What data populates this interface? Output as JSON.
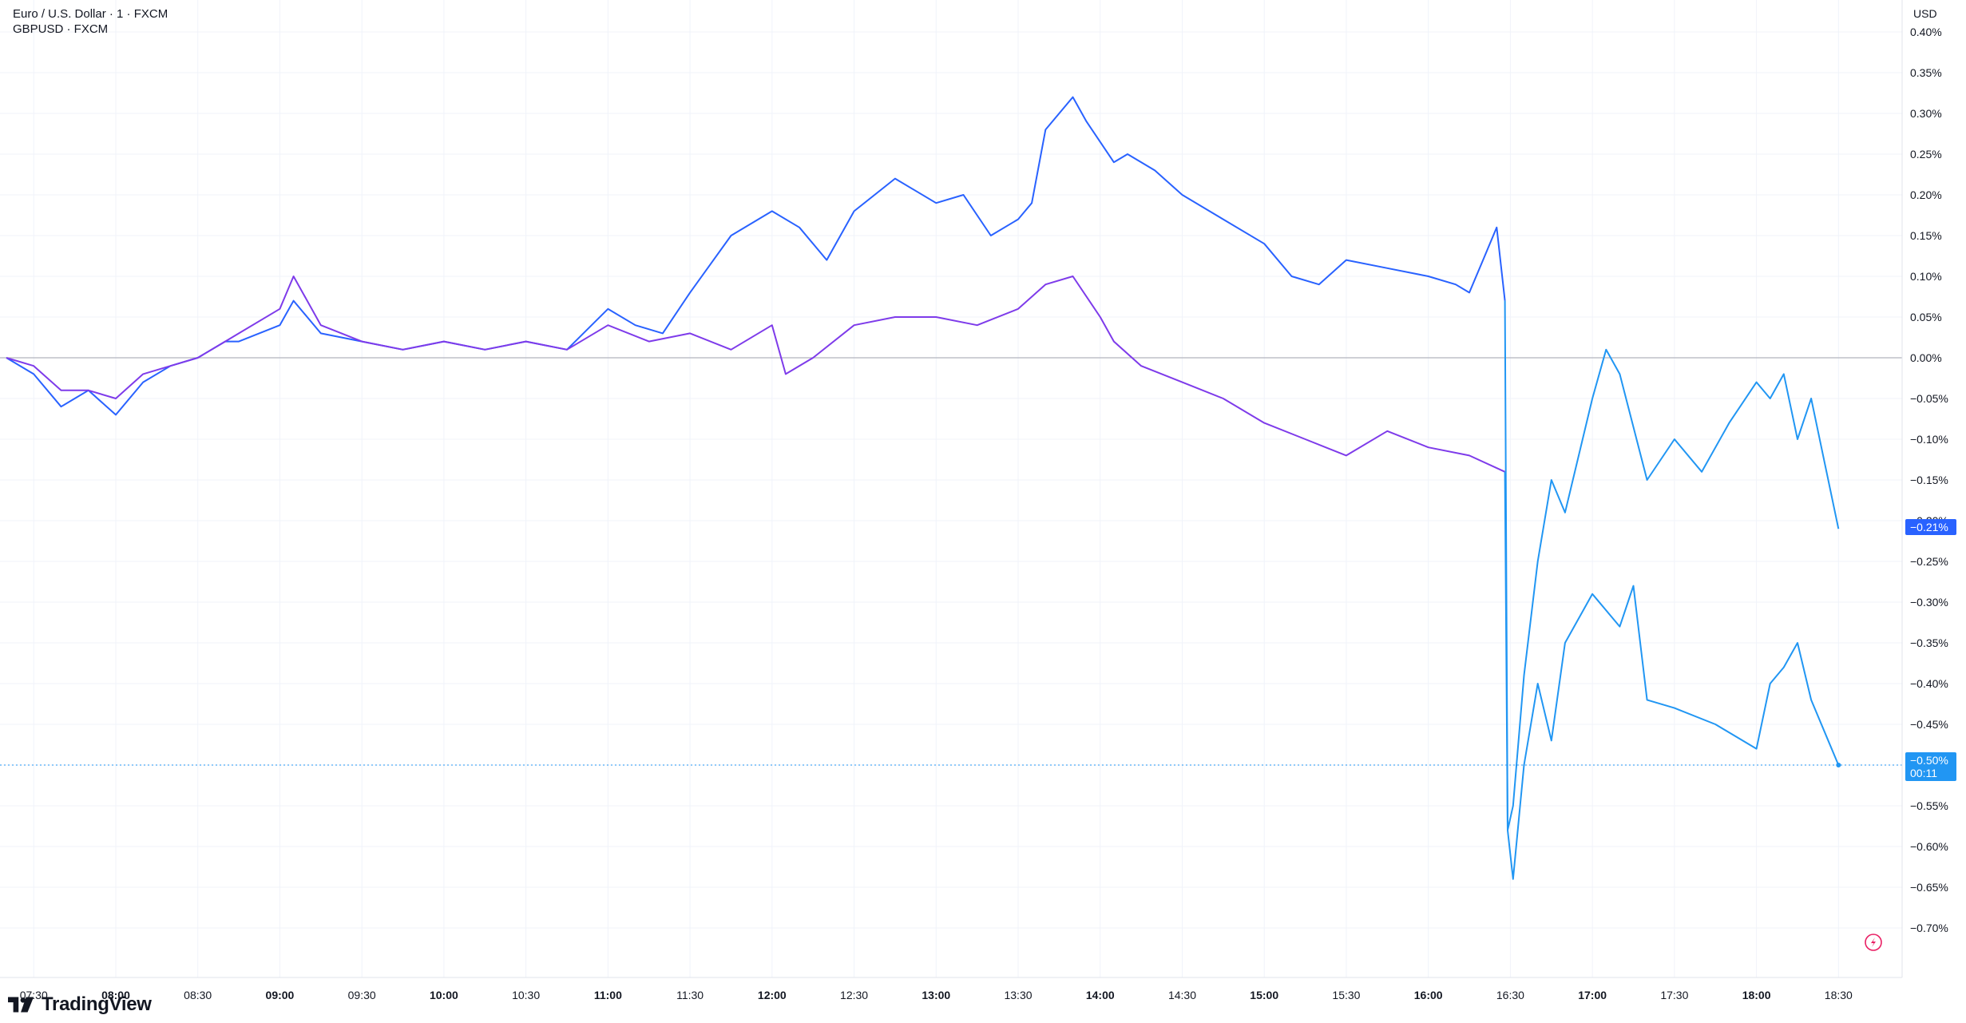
{
  "legend": {
    "main_symbol": "Euro / U.S. Dollar · 1 · FXCM",
    "compare_symbol": "GBPUSD · FXCM"
  },
  "brand": {
    "name": "TradingView"
  },
  "price_axis_unit": "USD",
  "badges": {
    "primary_value": "−0.21%",
    "secondary_value": "−0.50%",
    "countdown": "00:11"
  },
  "colors": {
    "eurusd": "#2962ff",
    "gbpusd": "#7e3bea",
    "after_event": "#2196f3",
    "grid": "#f0f3fa",
    "zero_line": "#b2b5be"
  },
  "chart_data": {
    "type": "line",
    "ylabel": "USD",
    "y_unit": "%",
    "ylim": [
      -0.72,
      0.41
    ],
    "y_ticks": [
      "0.40%",
      "0.35%",
      "0.30%",
      "0.25%",
      "0.20%",
      "0.15%",
      "0.10%",
      "0.05%",
      "0.00%",
      "−0.05%",
      "−0.10%",
      "−0.15%",
      "−0.20%",
      "−0.25%",
      "−0.30%",
      "−0.35%",
      "−0.40%",
      "−0.45%",
      "−0.50%",
      "−0.55%",
      "−0.60%",
      "−0.65%",
      "−0.70%"
    ],
    "y_tick_values": [
      0.4,
      0.35,
      0.3,
      0.25,
      0.2,
      0.15,
      0.1,
      0.05,
      0.0,
      -0.05,
      -0.1,
      -0.15,
      -0.2,
      -0.25,
      -0.3,
      -0.35,
      -0.4,
      -0.45,
      -0.5,
      -0.55,
      -0.6,
      -0.65,
      -0.7
    ],
    "x_ticks": [
      "07:30",
      "08:00",
      "08:30",
      "09:00",
      "09:30",
      "10:00",
      "10:30",
      "11:00",
      "11:30",
      "12:00",
      "12:30",
      "13:00",
      "13:30",
      "14:00",
      "14:30",
      "15:00",
      "15:30",
      "16:00",
      "16:30",
      "17:00",
      "17:30",
      "18:00",
      "18:30"
    ],
    "x_bold_ticks": [
      "08:00",
      "09:00",
      "10:00",
      "11:00",
      "12:00",
      "13:00",
      "14:00",
      "15:00",
      "16:00",
      "17:00",
      "18:00"
    ],
    "grid": true,
    "series": [
      {
        "name": "Euro / U.S. Dollar · 1 · FXCM",
        "x": [
          "07:20",
          "07:30",
          "07:40",
          "07:45",
          "07:50",
          "08:00",
          "08:10",
          "08:20",
          "08:30",
          "08:40",
          "08:45",
          "09:00",
          "09:05",
          "09:15",
          "09:30",
          "09:45",
          "10:00",
          "10:15",
          "10:30",
          "10:45",
          "11:00",
          "11:10",
          "11:20",
          "11:30",
          "11:45",
          "12:00",
          "12:10",
          "12:20",
          "12:30",
          "12:45",
          "13:00",
          "13:10",
          "13:20",
          "13:30",
          "13:35",
          "13:40",
          "13:50",
          "13:55",
          "14:05",
          "14:10",
          "14:20",
          "14:30",
          "14:45",
          "15:00",
          "15:10",
          "15:20",
          "15:30",
          "15:45",
          "16:00",
          "16:10",
          "16:15",
          "16:20",
          "16:25",
          "16:28",
          "16:29",
          "16:31",
          "16:35",
          "16:40",
          "16:45",
          "16:50",
          "17:00",
          "17:05",
          "17:10",
          "17:20",
          "17:30",
          "17:40",
          "17:50",
          "18:00",
          "18:05",
          "18:10",
          "18:15",
          "18:20",
          "18:30"
        ],
        "values": [
          0.0,
          -0.02,
          -0.06,
          -0.05,
          -0.04,
          -0.07,
          -0.03,
          -0.01,
          0.0,
          0.02,
          0.02,
          0.04,
          0.07,
          0.03,
          0.02,
          0.01,
          0.02,
          0.01,
          0.02,
          0.01,
          0.06,
          0.04,
          0.03,
          0.08,
          0.15,
          0.18,
          0.16,
          0.12,
          0.18,
          0.22,
          0.19,
          0.2,
          0.15,
          0.17,
          0.19,
          0.28,
          0.32,
          0.29,
          0.24,
          0.25,
          0.23,
          0.2,
          0.17,
          0.14,
          0.1,
          0.09,
          0.12,
          0.11,
          0.1,
          0.09,
          0.08,
          0.12,
          0.16,
          0.07,
          -0.58,
          -0.55,
          -0.39,
          -0.25,
          -0.15,
          -0.19,
          -0.05,
          0.01,
          -0.02,
          -0.15,
          -0.1,
          -0.14,
          -0.08,
          -0.03,
          -0.05,
          -0.02,
          -0.1,
          -0.05,
          -0.21
        ]
      },
      {
        "name": "GBPUSD · FXCM",
        "x": [
          "07:20",
          "07:30",
          "07:40",
          "07:50",
          "08:00",
          "08:10",
          "08:20",
          "08:30",
          "08:40",
          "08:45",
          "09:00",
          "09:05",
          "09:15",
          "09:30",
          "09:45",
          "10:00",
          "10:15",
          "10:30",
          "10:45",
          "11:00",
          "11:15",
          "11:30",
          "11:45",
          "12:00",
          "12:05",
          "12:15",
          "12:30",
          "12:45",
          "13:00",
          "13:15",
          "13:30",
          "13:40",
          "13:50",
          "14:00",
          "14:05",
          "14:15",
          "14:30",
          "14:45",
          "15:00",
          "15:15",
          "15:30",
          "15:45",
          "16:00",
          "16:15",
          "16:28",
          "16:29",
          "16:31",
          "16:35",
          "16:40",
          "16:45",
          "16:50",
          "17:00",
          "17:10",
          "17:15",
          "17:20",
          "17:30",
          "17:45",
          "18:00",
          "18:05",
          "18:10",
          "18:15",
          "18:20",
          "18:30"
        ],
        "values": [
          0.0,
          -0.01,
          -0.04,
          -0.04,
          -0.05,
          -0.02,
          -0.01,
          0.0,
          0.02,
          0.03,
          0.06,
          0.1,
          0.04,
          0.02,
          0.01,
          0.02,
          0.01,
          0.02,
          0.01,
          0.04,
          0.02,
          0.03,
          0.01,
          0.04,
          -0.02,
          0.0,
          0.04,
          0.05,
          0.05,
          0.04,
          0.06,
          0.09,
          0.1,
          0.05,
          0.02,
          -0.01,
          -0.03,
          -0.05,
          -0.08,
          -0.1,
          -0.12,
          -0.09,
          -0.11,
          -0.12,
          -0.14,
          -0.58,
          -0.64,
          -0.5,
          -0.4,
          -0.47,
          -0.35,
          -0.29,
          -0.33,
          -0.28,
          -0.42,
          -0.43,
          -0.45,
          -0.48,
          -0.4,
          -0.38,
          -0.35,
          -0.42,
          -0.5
        ]
      }
    ]
  }
}
